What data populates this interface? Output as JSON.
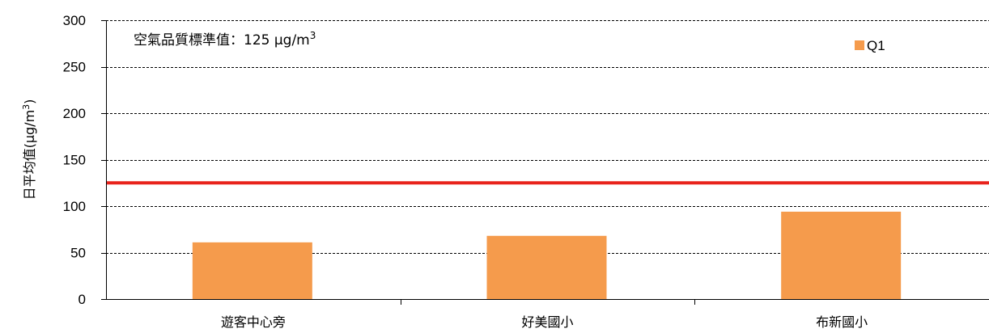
{
  "chart_data": {
    "type": "bar",
    "categories": [
      "遊客中心旁",
      "好美國小",
      "布新國小"
    ],
    "series": [
      {
        "name": "Q1",
        "values": [
          61,
          68,
          94
        ],
        "color": "#F59B4C"
      }
    ],
    "ylabel": "日平均值(μg/m³)",
    "ylabel_base": "日平均值(μg/m",
    "ylabel_sup": "3",
    "ylabel_close": ")",
    "ylim": [
      0,
      300
    ],
    "yticks": [
      0,
      50,
      100,
      150,
      200,
      250,
      300
    ],
    "grid": true,
    "grid_style": "dashed",
    "legend_position": "top-right",
    "reference_line": {
      "value": 125,
      "color": "#E8231C",
      "label": "空氣品質標準值：125 μg/m³",
      "label_base": "空氣品質標準值：125 μg/m",
      "label_sup": "3"
    }
  }
}
